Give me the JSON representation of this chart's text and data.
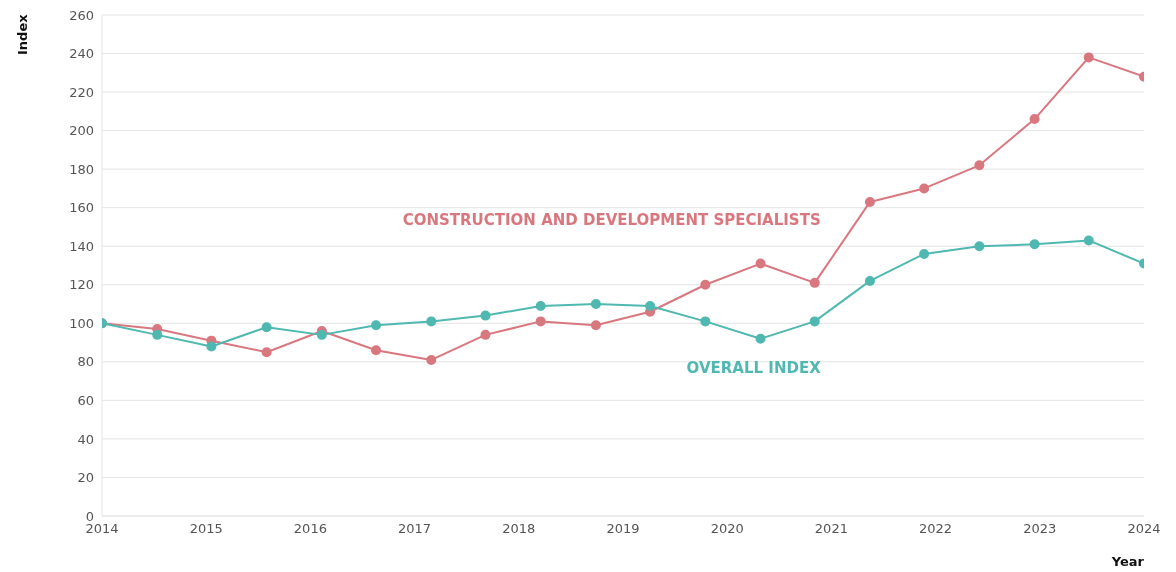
{
  "chart_data": {
    "type": "line",
    "xlabel": "Year",
    "ylabel": "Index",
    "x": [
      2014,
      2014.53,
      2015.05,
      2015.58,
      2016.11,
      2016.63,
      2017.16,
      2017.68,
      2018.21,
      2018.74,
      2019.26,
      2019.79,
      2020.32,
      2020.84,
      2021.37,
      2021.89,
      2022.42,
      2022.95,
      2023.47,
      2024
    ],
    "series": [
      {
        "name": "CONSTRUCTION AND DEVELOPMENT SPECIALISTS",
        "color": "#d9777f",
        "values": [
          100,
          97,
          91,
          85,
          96,
          86,
          81,
          94,
          101,
          99,
          106,
          120,
          131,
          121,
          163,
          170,
          182,
          206,
          238,
          228
        ]
      },
      {
        "name": "OVERALL INDEX",
        "color": "#4fb8b0",
        "values": [
          100,
          94,
          88,
          98,
          94,
          99,
          101,
          104,
          109,
          110,
          109,
          101,
          92,
          101,
          122,
          136,
          140,
          141,
          143,
          131
        ]
      }
    ],
    "xlim": [
      2014,
      2024
    ],
    "xticks": [
      2014,
      2015,
      2016,
      2017,
      2018,
      2019,
      2020,
      2021,
      2022,
      2023,
      2024
    ],
    "ylim": [
      0,
      260
    ],
    "yticks": [
      0,
      20,
      40,
      60,
      80,
      100,
      120,
      140,
      160,
      180,
      200,
      220,
      240,
      260
    ],
    "grid": "y",
    "marker": "circle",
    "line_style": "solid"
  }
}
